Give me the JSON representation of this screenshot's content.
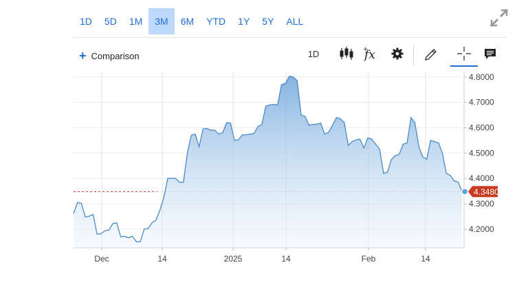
{
  "range_buttons": [
    "1D",
    "5D",
    "1M",
    "3M",
    "6M",
    "YTD",
    "1Y",
    "5Y",
    "ALL"
  ],
  "active_range": "3M",
  "comparison_label": "Comparison",
  "toolbar": {
    "interval_label": "1D"
  },
  "icons": [
    "expand-icon",
    "candlestick-icon",
    "fx-icon",
    "gear-icon",
    "pencil-icon",
    "crosshair-icon",
    "comment-icon"
  ],
  "colors": {
    "accent": "#1f6fd6",
    "line": "#4a8ac9",
    "last_price": "#c8391f",
    "active_tab": "#bcd9fb"
  },
  "chart_data": {
    "type": "area",
    "title": "",
    "xlabel": "",
    "ylabel": "",
    "x_tick_labels": [
      "Dec",
      "14",
      "2025",
      "14",
      "Feb",
      "14"
    ],
    "y_tick_labels": [
      "4.8000",
      "4.7000",
      "4.6000",
      "4.5000",
      "4.4000",
      "4.3000",
      "4.2000"
    ],
    "y_ticks": [
      4.8,
      4.7,
      4.6,
      4.5,
      4.4,
      4.3,
      4.2
    ],
    "ylim": [
      4.132,
      4.805
    ],
    "last_value": 4.348,
    "last_value_label": "4.3480",
    "grid": true,
    "series": [
      {
        "values": [
          4.262,
          4.305,
          4.302,
          4.248,
          4.251,
          4.258,
          4.18,
          4.182,
          4.194,
          4.196,
          4.222,
          4.225,
          4.17,
          4.172,
          4.166,
          4.172,
          4.15,
          4.15,
          4.2,
          4.202,
          4.225,
          4.235,
          4.275,
          4.325,
          4.4,
          4.4,
          4.4,
          4.385,
          4.385,
          4.5,
          4.57,
          4.575,
          4.525,
          4.595,
          4.597,
          4.59,
          4.59,
          4.575,
          4.58,
          4.62,
          4.618,
          4.55,
          4.552,
          4.572,
          4.572,
          4.575,
          4.577,
          4.605,
          4.612,
          4.685,
          4.69,
          4.692,
          4.69,
          4.77,
          4.775,
          4.803,
          4.8,
          4.785,
          4.65,
          4.645,
          4.61,
          4.613,
          4.614,
          4.618,
          4.575,
          4.582,
          4.61,
          4.64,
          4.635,
          4.62,
          4.53,
          4.545,
          4.552,
          4.555,
          4.52,
          4.56,
          4.555,
          4.535,
          4.515,
          4.42,
          4.425,
          4.475,
          4.49,
          4.495,
          4.535,
          4.54,
          4.64,
          4.62,
          4.525,
          4.485,
          4.475,
          4.55,
          4.545,
          4.54,
          4.5,
          4.42,
          4.412,
          4.39,
          4.386,
          4.348
        ]
      }
    ]
  }
}
